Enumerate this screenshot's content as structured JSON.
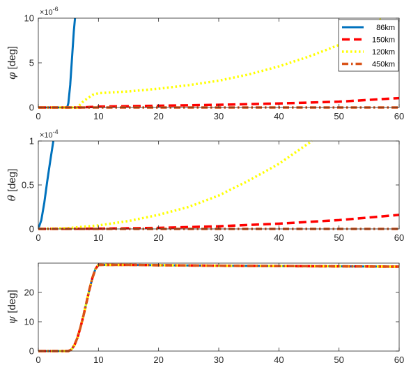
{
  "chart_data": [
    {
      "type": "line",
      "id": "phi",
      "ylabel_symbol": "φ",
      "ylabel_unit": "[deg]",
      "exponent_base": "×10",
      "exponent_power": "-6",
      "xlim": [
        0,
        60
      ],
      "ylim": [
        0,
        10
      ],
      "xticks": [
        "0",
        "10",
        "20",
        "30",
        "40",
        "50",
        "60"
      ],
      "yticks": [
        {
          "value": 0,
          "label": "0"
        },
        {
          "value": 5,
          "label": "5"
        },
        {
          "value": 10,
          "label": "10"
        }
      ],
      "legend": "top-right",
      "series": [
        {
          "name": "86km",
          "color": "#0072BD",
          "style": "solid",
          "x": [
            0,
            4.8,
            5.0,
            5.3,
            5.6,
            5.9,
            6.1
          ],
          "y": [
            0,
            0,
            0.5,
            2.5,
            5.5,
            8.5,
            10
          ]
        },
        {
          "name": "150km",
          "color": "#FF0000",
          "style": "dashed",
          "x": [
            0,
            7,
            10,
            20,
            30,
            40,
            50,
            60
          ],
          "y": [
            0,
            0,
            0.1,
            0.2,
            0.3,
            0.45,
            0.65,
            1.05
          ]
        },
        {
          "name": "120km",
          "color": "#FFFF00",
          "style": "dotted",
          "x": [
            0,
            6.5,
            7.5,
            9,
            10,
            15,
            20,
            25,
            30,
            35,
            40,
            45,
            50,
            53,
            57
          ],
          "y": [
            0,
            0,
            0.7,
            1.4,
            1.6,
            1.8,
            2.1,
            2.5,
            3.0,
            3.7,
            4.6,
            5.7,
            7.0,
            8.0,
            9.9
          ]
        },
        {
          "name": "450km",
          "color": "#D95319",
          "style": "dashdot",
          "x": [
            0,
            60
          ],
          "y": [
            0,
            0
          ]
        }
      ]
    },
    {
      "type": "line",
      "id": "theta",
      "ylabel_symbol": "θ",
      "ylabel_unit": "[deg]",
      "exponent_base": "×10",
      "exponent_power": "-4",
      "xlim": [
        0,
        60
      ],
      "ylim": [
        0,
        1
      ],
      "xticks": [
        "0",
        "10",
        "20",
        "30",
        "40",
        "50",
        "60"
      ],
      "yticks": [
        {
          "value": 0,
          "label": "0"
        },
        {
          "value": 0.5,
          "label": "0.5"
        },
        {
          "value": 1,
          "label": "1"
        }
      ],
      "series": [
        {
          "name": "86km",
          "color": "#0072BD",
          "style": "solid",
          "x": [
            0,
            0.5,
            1,
            1.5,
            2,
            2.5
          ],
          "y": [
            0,
            0.1,
            0.3,
            0.55,
            0.78,
            1.0
          ]
        },
        {
          "name": "150km",
          "color": "#FF0000",
          "style": "dashed",
          "x": [
            0,
            10,
            20,
            30,
            40,
            50,
            60
          ],
          "y": [
            0,
            0.003,
            0.012,
            0.03,
            0.06,
            0.1,
            0.16
          ]
        },
        {
          "name": "120km",
          "color": "#FFFF00",
          "style": "dotted",
          "x": [
            0,
            5,
            10,
            15,
            20,
            25,
            30,
            35,
            40,
            45.5
          ],
          "y": [
            0,
            0.01,
            0.04,
            0.09,
            0.16,
            0.25,
            0.38,
            0.55,
            0.74,
            1.0
          ]
        },
        {
          "name": "450km",
          "color": "#D95319",
          "style": "dashdot",
          "x": [
            0,
            60
          ],
          "y": [
            0,
            0
          ]
        }
      ]
    },
    {
      "type": "line",
      "id": "psi",
      "ylabel_symbol": "ψ",
      "ylabel_unit": "[deg]",
      "xlim": [
        0,
        60
      ],
      "ylim": [
        0,
        30
      ],
      "xticks": [
        "0",
        "10",
        "20",
        "30",
        "40",
        "50",
        "60"
      ],
      "yticks": [
        {
          "value": 0,
          "label": "0"
        },
        {
          "value": 10,
          "label": "10"
        },
        {
          "value": 20,
          "label": "20"
        }
      ],
      "series": [
        {
          "name": "86km",
          "color": "#0072BD",
          "style": "solid",
          "x": [
            0,
            5,
            5.5,
            6,
            6.5,
            7,
            7.5,
            8,
            8.5,
            9,
            9.5,
            10,
            15,
            20,
            30,
            40,
            50,
            60
          ],
          "y": [
            0,
            0,
            0.5,
            2,
            4.5,
            8,
            12,
            16.5,
            21,
            25,
            28,
            29.4,
            29.4,
            29.3,
            29.1,
            29.0,
            28.9,
            28.8
          ]
        },
        {
          "name": "150km",
          "color": "#FF0000",
          "style": "dashed",
          "x": [
            0,
            5,
            5.5,
            6,
            6.5,
            7,
            7.5,
            8,
            8.5,
            9,
            9.5,
            10,
            15,
            20,
            30,
            40,
            50,
            60
          ],
          "y": [
            0,
            0,
            0.5,
            2,
            4.5,
            8,
            12,
            16.5,
            21,
            25,
            28,
            29.4,
            29.4,
            29.3,
            29.1,
            29.0,
            28.9,
            28.8
          ]
        },
        {
          "name": "120km",
          "color": "#FFFF00",
          "style": "dotted",
          "x": [
            0,
            5,
            5.5,
            6,
            6.5,
            7,
            7.5,
            8,
            8.5,
            9,
            9.5,
            10,
            15,
            20,
            30,
            40,
            50,
            60
          ],
          "y": [
            0,
            0,
            0.5,
            2,
            4.5,
            8,
            12,
            16.5,
            21,
            25,
            28,
            29.4,
            29.4,
            29.3,
            29.1,
            29.0,
            28.9,
            28.8
          ]
        },
        {
          "name": "450km",
          "color": "#D95319",
          "style": "dashdot",
          "x": [
            0,
            5,
            5.5,
            6,
            6.5,
            7,
            7.5,
            8,
            8.5,
            9,
            9.5,
            10,
            15,
            20,
            30,
            40,
            50,
            60
          ],
          "y": [
            0,
            0,
            0.5,
            2,
            4.5,
            8,
            12,
            16.5,
            21,
            25,
            28,
            29.4,
            29.4,
            29.3,
            29.1,
            29.0,
            28.9,
            28.8
          ]
        }
      ]
    }
  ]
}
